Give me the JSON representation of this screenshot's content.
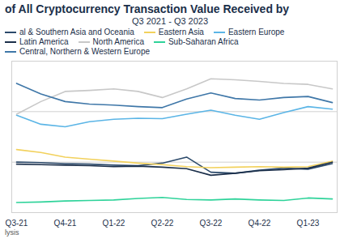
{
  "chart_data": {
    "type": "line",
    "title": "of All Cryptocurrency Transaction Value Received by",
    "subtitle": "Q3 2021 - Q3 2023",
    "caption": "lysis",
    "categories": [
      "Q3-21",
      null,
      "Q4-21",
      null,
      "Q1-22",
      null,
      "Q2-22",
      null,
      "Q3-22",
      null,
      "Q4-22",
      null,
      "Q1-23",
      null
    ],
    "series": [
      {
        "name": "al & Southern Asia and Oceania",
        "color": "#2c4a6b",
        "values": [
          10,
          9.9,
          9.7,
          9.6,
          9.4,
          9.3,
          9.8,
          11,
          8,
          7.8,
          8.4,
          8.8,
          8.6,
          9.7
        ]
      },
      {
        "name": "Eastern Asia",
        "color": "#f2d15c",
        "values": [
          12.5,
          11.9,
          11,
          10.6,
          10.2,
          9.8,
          9.5,
          9.1,
          8.9,
          9,
          9.1,
          9,
          9.1,
          10.2
        ]
      },
      {
        "name": "Eastern Europe",
        "color": "#5bb5e6",
        "values": [
          19.3,
          17.5,
          17,
          18,
          18.5,
          18.7,
          18.6,
          19.5,
          20.3,
          19.3,
          18.5,
          19.8,
          21,
          20.5
        ]
      },
      {
        "name": "Latin America",
        "color": "#1b2f4a",
        "values": [
          9.6,
          9.5,
          9.4,
          9.3,
          9.1,
          9.2,
          9,
          8.7,
          7.4,
          7.8,
          8.3,
          8.5,
          8.8,
          10
        ]
      },
      {
        "name": "North America",
        "color": "#c8c8c8",
        "values": [
          19.5,
          22,
          24,
          24.2,
          24.5,
          24,
          22.8,
          24.5,
          26.5,
          26.3,
          26,
          25.6,
          25.4,
          24.5
        ]
      },
      {
        "name": "Sub-Saharan Africa",
        "color": "#2fd39a",
        "values": [
          2,
          2.1,
          2.3,
          2.4,
          2.5,
          2.8,
          3,
          2.6,
          2.5,
          2.7,
          2.5,
          2.4,
          2.9,
          2.7
        ]
      },
      {
        "name": "Central, Northern & Western Europe",
        "color": "#3f77a8",
        "values": [
          25.6,
          23.5,
          22,
          21.5,
          21.3,
          21,
          20.8,
          22.5,
          23.7,
          22.6,
          22.3,
          22.8,
          23,
          21.8
        ]
      }
    ],
    "ylim": [
      0,
      30
    ],
    "yticks": [
      10,
      20
    ],
    "grid": true,
    "legend": "top",
    "tick_labels": "x"
  }
}
